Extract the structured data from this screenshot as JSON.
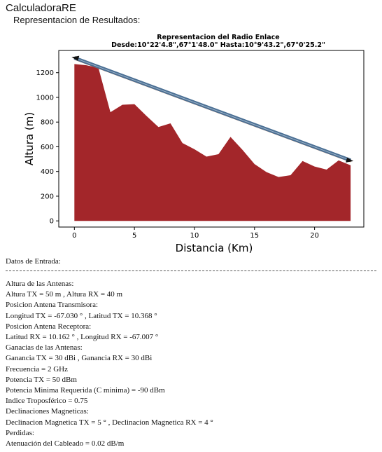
{
  "app": {
    "title": "CalculadoraRE",
    "subtitle": "Representacion de Resultados:"
  },
  "colors": {
    "terrain": "#a3262a",
    "link_line": "#4a6f94",
    "fresnel_upper": "#e07b39",
    "axes": "#000000"
  },
  "chart_data": {
    "type": "area",
    "title": "Representacion del Radio Enlace",
    "subtitle": "Desde:10°22'4.8\",67°1'48.0\" Hasta:10°9'43.2\",67°0'25.2\"",
    "xlabel": "Distancia (Km)",
    "ylabel": "Altura (m)",
    "xlim": [
      -1.3,
      24.1
    ],
    "ylim": [
      -50,
      1380
    ],
    "xticks": [
      0,
      5,
      10,
      15,
      20
    ],
    "yticks": [
      0,
      200,
      400,
      600,
      800,
      1000,
      1200
    ],
    "grid": false,
    "terrain": {
      "x": [
        0,
        1,
        2,
        3,
        4,
        5,
        6,
        7,
        8,
        9,
        10,
        11,
        12,
        13,
        14,
        15,
        16,
        17,
        18,
        19,
        20,
        21,
        22,
        23
      ],
      "y": [
        1270,
        1260,
        1240,
        880,
        940,
        945,
        850,
        760,
        790,
        630,
        580,
        520,
        540,
        680,
        575,
        460,
        395,
        355,
        370,
        485,
        440,
        415,
        490,
        450
      ]
    },
    "link": {
      "x": [
        0,
        23
      ],
      "y": [
        1320,
        490
      ]
    }
  },
  "inputs": {
    "heading": "Datos de Entrada:",
    "lines": [
      "Altura de las Antenas:",
      "Altura TX = 50 m , Altura RX = 40 m",
      "Posicion Antena Transmisora:",
      "Longitud TX = -67.030 ° , Latitud TX = 10.368 °",
      "Posicion Antena Receptora:",
      "Latitud RX = 10.162 ° , Longitud RX = -67.007 °",
      "Ganacias de las Antenas:",
      "Ganancia TX = 30 dBi , Ganancia RX = 30 dBi",
      "Frecuencia = 2 GHz",
      "Potencia TX = 50 dBm",
      "Potencia Minima Requerida (C minima) = -90 dBm",
      "Indice Troposférico = 0.75",
      "Declinaciones Magneticas:",
      "Declinacion Magnetica TX = 5 ° , Declinacion Magnetica RX = 4 °",
      "Perdidas:",
      "Atenuación del Cableado = 0.02 dB/m"
    ]
  }
}
